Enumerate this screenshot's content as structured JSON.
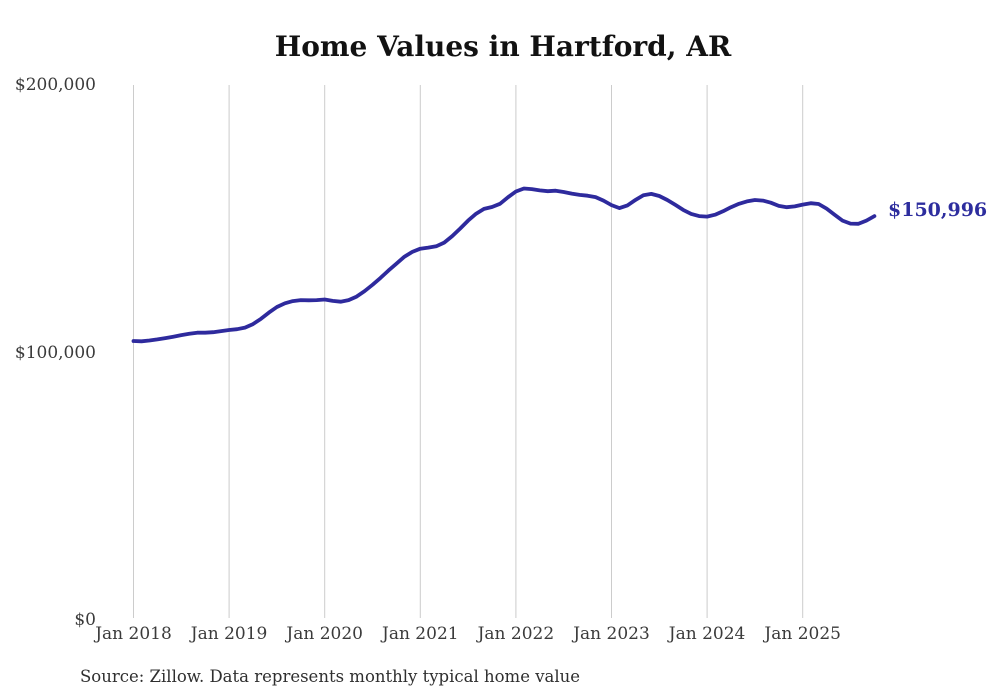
{
  "chart": {
    "title": "Home Values in Hartford, AR",
    "latest_value_label": "$150,996",
    "source": "Source: Zillow. Data represents monthly typical home value",
    "line_color": "#2e2a9d",
    "label_color": "#2d2d9e",
    "gridline_color": "#cccccc",
    "background_color": "#ffffff"
  },
  "chart_data": {
    "type": "line",
    "title": "Home Values in Hartford, AR",
    "xlabel": "",
    "ylabel": "",
    "ylim": [
      0,
      200000
    ],
    "grid": "vertical-only",
    "legend": "none",
    "x_start_month": "Jan 2018",
    "x_end_month": "Oct 2025",
    "x_tick_labels": [
      "Jan 2018",
      "Jan 2019",
      "Jan 2020",
      "Jan 2021",
      "Jan 2022",
      "Jan 2023",
      "Jan 2024",
      "Jan 2025"
    ],
    "x_tick_month_indices": [
      0,
      12,
      24,
      36,
      48,
      60,
      72,
      84
    ],
    "y_ticks": [
      {
        "label": "$0",
        "value": 0
      },
      {
        "label": "$100,000",
        "value": 100000
      },
      {
        "label": "$200,000",
        "value": 200000
      }
    ],
    "series": [
      {
        "name": "Monthly typical home value",
        "values": [
          104300,
          104200,
          104500,
          104900,
          105400,
          105900,
          106500,
          107000,
          107400,
          107400,
          107600,
          108000,
          108400,
          108700,
          109300,
          110600,
          112600,
          114900,
          117000,
          118400,
          119200,
          119600,
          119500,
          119600,
          119800,
          119300,
          119000,
          119600,
          120900,
          122900,
          125300,
          127900,
          130600,
          133200,
          135800,
          137600,
          138800,
          139200,
          139700,
          141100,
          143500,
          146300,
          149300,
          151900,
          153700,
          154400,
          155600,
          158000,
          160200,
          161300,
          161100,
          160600,
          160300,
          160500,
          160000,
          159400,
          158900,
          158600,
          158100,
          156800,
          155100,
          154000,
          155000,
          157000,
          158800,
          159300,
          158500,
          157000,
          155200,
          153300,
          151800,
          151000,
          150800,
          151500,
          152800,
          154300,
          155600,
          156500,
          157000,
          156800,
          156000,
          154800,
          154300,
          154600,
          155300,
          155800,
          155500,
          153800,
          151500,
          149300,
          148200,
          148100,
          149300,
          150996
        ]
      }
    ],
    "annotation": {
      "text": "$150,996",
      "position": "right-of-last-point"
    }
  }
}
